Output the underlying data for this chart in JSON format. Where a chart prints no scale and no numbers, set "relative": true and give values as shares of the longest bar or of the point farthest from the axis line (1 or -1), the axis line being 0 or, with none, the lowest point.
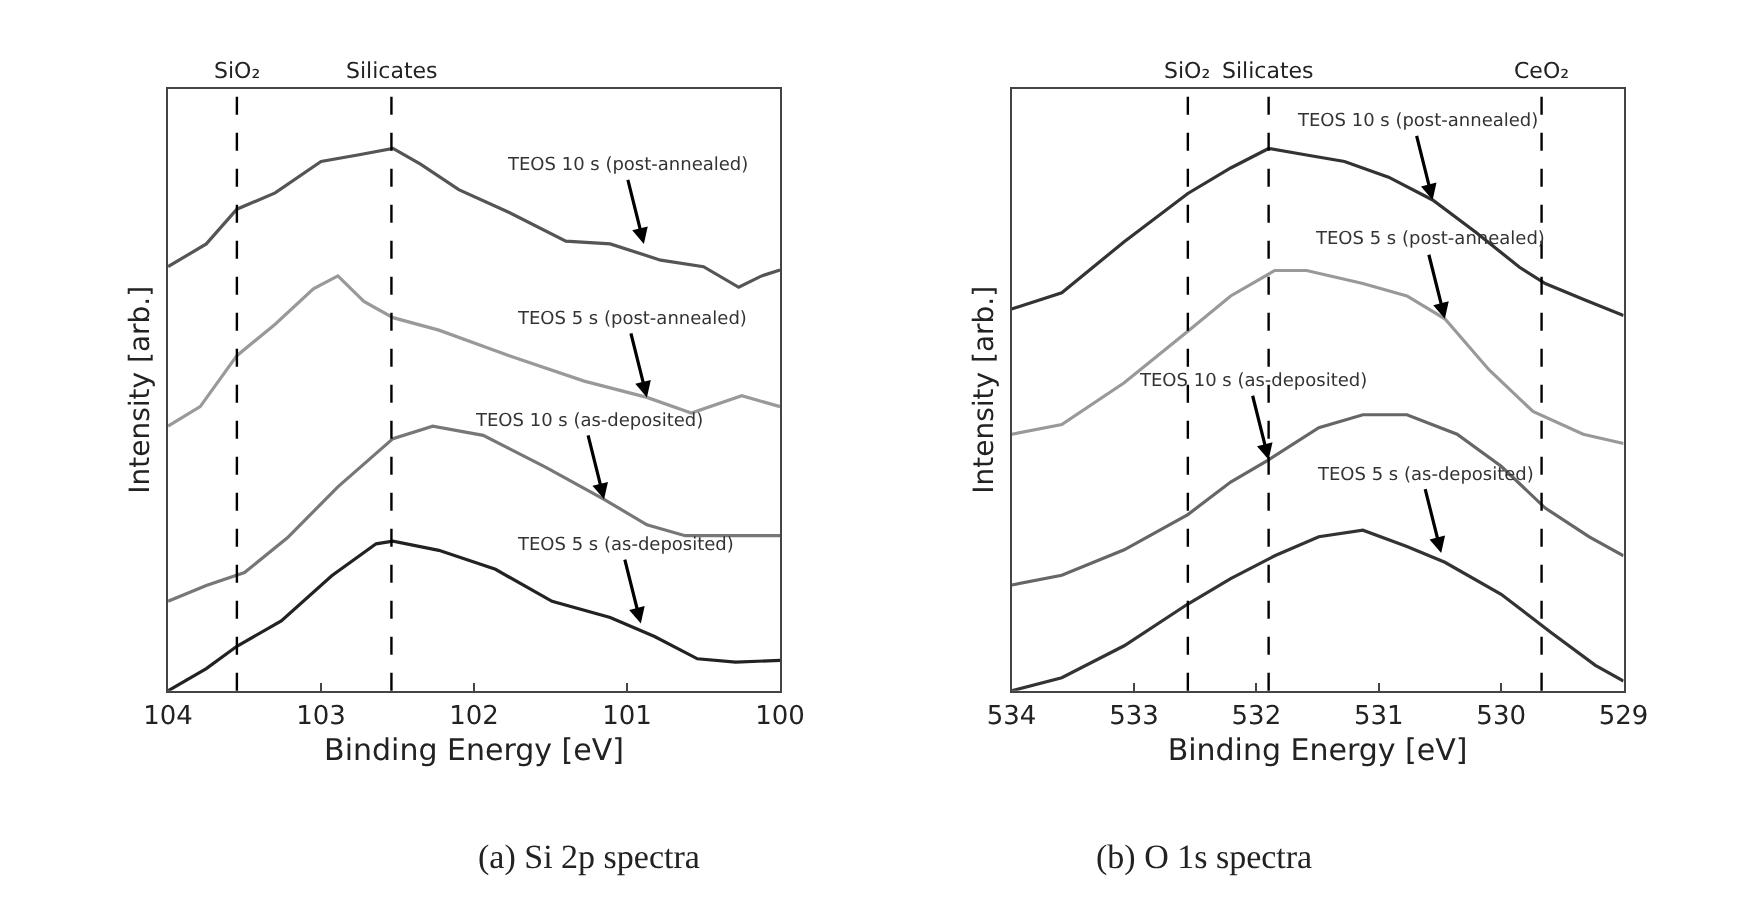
{
  "chart_data": [
    {
      "type": "line",
      "title": "(a) Si 2p spectra",
      "xlabel": "Binding Energy [eV]",
      "ylabel": "Intensity [arb.]",
      "relative": true,
      "xlim": [
        104,
        100
      ],
      "xticks": [
        104,
        103,
        102,
        101,
        100
      ],
      "marker": "none",
      "line_style": "solid",
      "series": [
        {
          "color": "#555555",
          "x": [
            104.0,
            103.75,
            103.55,
            103.3,
            103.0,
            102.76,
            102.53,
            102.35,
            102.1,
            101.77,
            101.4,
            101.11,
            100.78,
            100.5,
            100.27,
            100.12,
            100.0
          ],
          "values": [
            0.782,
            0.824,
            0.888,
            0.918,
            0.976,
            0.988,
            1.0,
            0.971,
            0.924,
            0.882,
            0.829,
            0.824,
            0.794,
            0.782,
            0.744,
            0.765,
            0.776
          ]
        },
        {
          "color": "#999999",
          "x": [
            104.0,
            103.79,
            103.55,
            103.3,
            103.05,
            102.89,
            102.72,
            102.53,
            102.23,
            101.77,
            101.28,
            100.87,
            100.58,
            100.25,
            100.0
          ],
          "values": [
            0.488,
            0.524,
            0.618,
            0.676,
            0.741,
            0.765,
            0.718,
            0.688,
            0.665,
            0.618,
            0.571,
            0.541,
            0.512,
            0.544,
            0.524
          ]
        },
        {
          "color": "#777777",
          "x": [
            104.0,
            103.75,
            103.5,
            103.22,
            102.89,
            102.53,
            102.27,
            101.94,
            101.53,
            101.15,
            100.87,
            100.62,
            100.0
          ],
          "values": [
            0.165,
            0.194,
            0.218,
            0.282,
            0.376,
            0.465,
            0.488,
            0.471,
            0.412,
            0.353,
            0.306,
            0.286,
            0.286
          ]
        },
        {
          "color": "#222222",
          "x": [
            104.0,
            103.75,
            103.55,
            103.26,
            102.93,
            102.64,
            102.53,
            102.23,
            101.86,
            101.49,
            101.11,
            100.82,
            100.54,
            100.29,
            100.0
          ],
          "values": [
            0.0,
            0.041,
            0.082,
            0.129,
            0.212,
            0.271,
            0.276,
            0.259,
            0.224,
            0.165,
            0.135,
            0.1,
            0.059,
            0.053,
            0.056
          ]
        }
      ],
      "ref_lines": [
        {
          "axis": "x",
          "value": 103.55,
          "label": "SiO₂",
          "color": "#000000",
          "line_style": "dashed"
        },
        {
          "axis": "x",
          "value": 102.54,
          "label": "Silicates",
          "color": "#000000",
          "line_style": "dashed"
        }
      ],
      "annotations": [
        {
          "text": "TEOS 10 s (post-annealed)",
          "x": 100.89,
          "y": 0.824
        },
        {
          "text": "TEOS 5 s (post-annealed)",
          "x": 100.87,
          "y": 0.541
        },
        {
          "text": "TEOS 10 s (as-deposited)",
          "x": 101.15,
          "y": 0.353
        },
        {
          "text": "TEOS 5 s (as-deposited)",
          "x": 100.91,
          "y": 0.124
        }
      ]
    },
    {
      "type": "line",
      "title": "(b) O 1s spectra",
      "xlabel": "Binding Energy [eV]",
      "ylabel": "Intensity [arb.]",
      "relative": true,
      "xlim": [
        534,
        529
      ],
      "xticks": [
        534,
        533,
        532,
        531,
        530,
        529
      ],
      "marker": "none",
      "line_style": "solid",
      "series": [
        {
          "color": "#333333",
          "x": [
            534.0,
            533.59,
            533.08,
            532.56,
            532.21,
            531.9,
            531.59,
            531.28,
            530.92,
            530.56,
            530.21,
            529.85,
            529.64,
            529.33,
            529.0
          ],
          "values": [
            0.704,
            0.734,
            0.828,
            0.917,
            0.964,
            1.0,
            0.988,
            0.976,
            0.947,
            0.905,
            0.846,
            0.781,
            0.751,
            0.722,
            0.692
          ]
        },
        {
          "color": "#999999",
          "x": [
            534.0,
            533.59,
            533.08,
            532.56,
            532.21,
            531.85,
            531.59,
            531.13,
            530.77,
            530.46,
            530.1,
            529.74,
            529.33,
            529.0
          ],
          "values": [
            0.473,
            0.491,
            0.568,
            0.663,
            0.728,
            0.775,
            0.775,
            0.751,
            0.728,
            0.686,
            0.592,
            0.515,
            0.473,
            0.456
          ]
        },
        {
          "color": "#666666",
          "x": [
            534.0,
            533.59,
            533.08,
            532.56,
            532.21,
            531.9,
            531.49,
            531.13,
            530.77,
            530.36,
            530.0,
            529.64,
            529.28,
            529.0
          ],
          "values": [
            0.195,
            0.213,
            0.26,
            0.325,
            0.385,
            0.426,
            0.485,
            0.509,
            0.509,
            0.473,
            0.414,
            0.337,
            0.284,
            0.249
          ]
        },
        {
          "color": "#333333",
          "x": [
            534.0,
            533.59,
            533.08,
            532.56,
            532.21,
            531.85,
            531.49,
            531.13,
            530.77,
            530.46,
            530.0,
            529.59,
            529.23,
            529.0
          ],
          "values": [
            0.0,
            0.024,
            0.083,
            0.16,
            0.207,
            0.249,
            0.284,
            0.296,
            0.266,
            0.237,
            0.178,
            0.107,
            0.047,
            0.018
          ]
        }
      ],
      "ref_lines": [
        {
          "axis": "x",
          "value": 532.56,
          "label": "SiO₂",
          "color": "#000000",
          "line_style": "dashed"
        },
        {
          "axis": "x",
          "value": 531.9,
          "label": "Silicates",
          "color": "#000000",
          "line_style": "dashed"
        },
        {
          "axis": "x",
          "value": 529.67,
          "label": "CeO₂",
          "color": "#000000",
          "line_style": "dashed"
        }
      ],
      "annotations": [
        {
          "text": "TEOS 10 s (post-annealed)",
          "x": 530.56,
          "y": 0.905
        },
        {
          "text": "TEOS 5 s (post-annealed)",
          "x": 530.46,
          "y": 0.686
        },
        {
          "text": "TEOS 10 s (as-deposited)",
          "x": 531.9,
          "y": 0.426
        },
        {
          "text": "TEOS 5 s (as-deposited)",
          "x": 530.49,
          "y": 0.254
        }
      ]
    }
  ]
}
